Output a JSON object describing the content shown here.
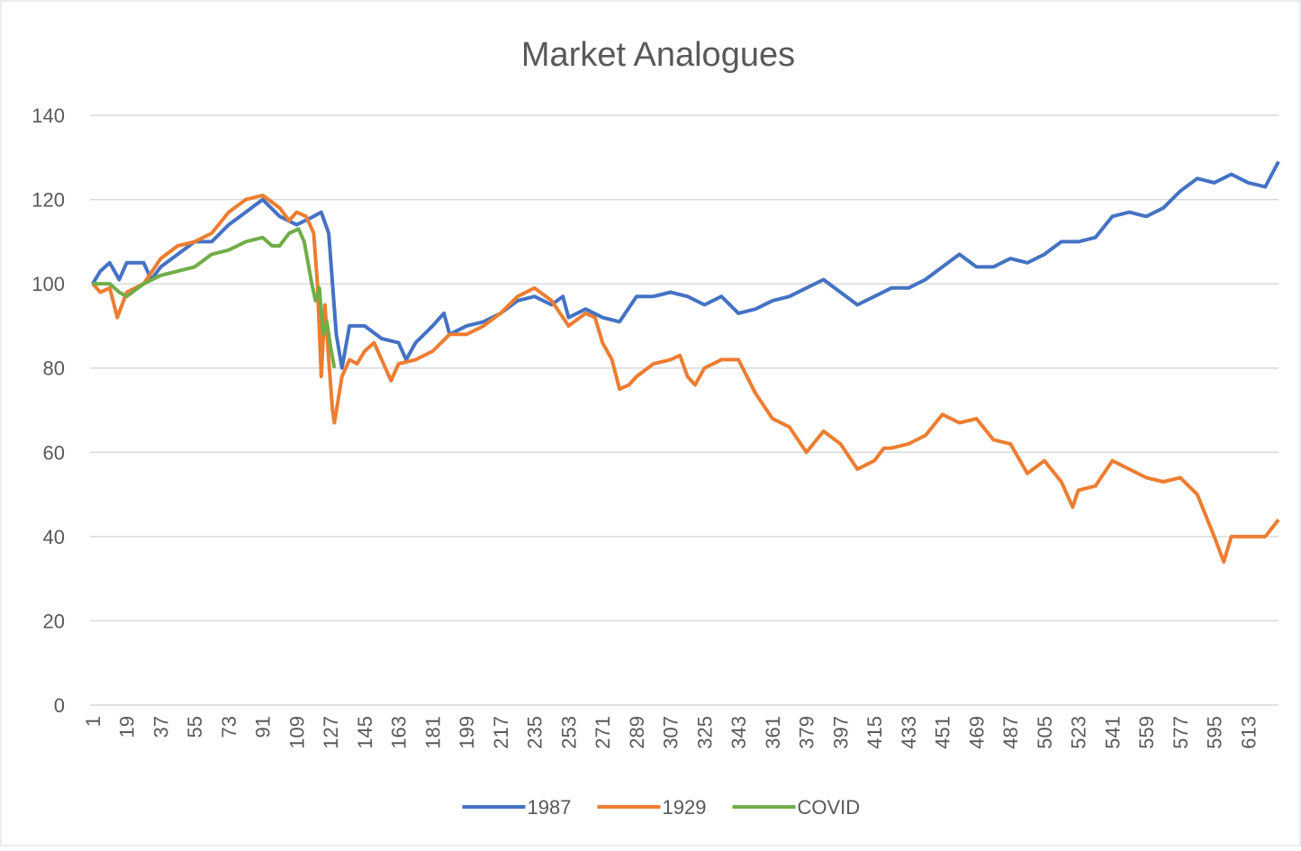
{
  "chart_data": {
    "type": "line",
    "title": "Market Analogues",
    "xlim": [
      1,
      629
    ],
    "xticks": [
      1,
      19,
      37,
      55,
      73,
      91,
      109,
      127,
      145,
      163,
      181,
      199,
      217,
      235,
      253,
      271,
      289,
      307,
      325,
      343,
      361,
      379,
      397,
      415,
      433,
      451,
      469,
      487,
      505,
      523,
      541,
      559,
      577,
      595,
      613
    ],
    "ylim": [
      0,
      140
    ],
    "yticks": [
      0,
      20,
      40,
      60,
      80,
      100,
      120,
      140
    ],
    "grid": true,
    "legend": "bottom",
    "series": [
      {
        "name": "1987",
        "color": "#4472c4",
        "x": [
          1,
          5,
          10,
          15,
          19,
          28,
          32,
          37,
          46,
          55,
          64,
          73,
          82,
          91,
          100,
          109,
          118,
          122,
          126,
          128,
          130,
          133,
          137,
          145,
          154,
          163,
          167,
          172,
          181,
          187,
          190,
          199,
          208,
          217,
          226,
          235,
          244,
          250,
          253,
          262,
          271,
          280,
          289,
          298,
          307,
          316,
          325,
          334,
          343,
          352,
          361,
          370,
          379,
          388,
          397,
          406,
          415,
          424,
          433,
          442,
          451,
          460,
          469,
          478,
          487,
          496,
          505,
          514,
          523,
          532,
          541,
          550,
          559,
          568,
          577,
          586,
          595,
          604,
          613,
          622,
          629
        ],
        "values": [
          100,
          103,
          105,
          101,
          105,
          105,
          101,
          104,
          107,
          110,
          110,
          114,
          117,
          120,
          116,
          114,
          116,
          117,
          112,
          100,
          88,
          80,
          90,
          90,
          87,
          86,
          82,
          86,
          90,
          93,
          88,
          90,
          91,
          93,
          96,
          97,
          95,
          97,
          92,
          94,
          92,
          91,
          97,
          97,
          98,
          97,
          95,
          97,
          93,
          94,
          96,
          97,
          99,
          101,
          98,
          95,
          97,
          99,
          99,
          101,
          104,
          107,
          104,
          104,
          106,
          105,
          107,
          110,
          110,
          111,
          116,
          117,
          116,
          118,
          122,
          125,
          124,
          126,
          124,
          123,
          129
        ]
      },
      {
        "name": "1929",
        "color": "#ed7d31",
        "x": [
          1,
          5,
          10,
          14,
          19,
          28,
          37,
          46,
          55,
          64,
          73,
          82,
          91,
          100,
          105,
          109,
          114,
          118,
          120,
          122,
          124,
          126,
          128,
          129,
          133,
          137,
          141,
          145,
          150,
          154,
          159,
          163,
          172,
          181,
          190,
          199,
          208,
          217,
          226,
          235,
          244,
          253,
          262,
          267,
          271,
          276,
          280,
          285,
          289,
          298,
          307,
          312,
          316,
          320,
          325,
          334,
          343,
          352,
          361,
          370,
          379,
          388,
          397,
          406,
          415,
          420,
          424,
          433,
          442,
          451,
          460,
          469,
          478,
          487,
          496,
          505,
          514,
          520,
          523,
          532,
          541,
          550,
          559,
          568,
          577,
          586,
          595,
          600,
          604,
          613,
          622,
          629
        ],
        "values": [
          100,
          98,
          99,
          92,
          98,
          100,
          106,
          109,
          110,
          112,
          117,
          120,
          121,
          118,
          115,
          117,
          116,
          112,
          100,
          78,
          95,
          82,
          70,
          67,
          78,
          82,
          81,
          84,
          86,
          82,
          77,
          81,
          82,
          84,
          88,
          88,
          90,
          93,
          97,
          99,
          96,
          90,
          93,
          92,
          86,
          82,
          75,
          76,
          78,
          81,
          82,
          83,
          78,
          76,
          80,
          82,
          82,
          74,
          68,
          66,
          60,
          65,
          62,
          56,
          58,
          61,
          61,
          62,
          64,
          69,
          67,
          68,
          63,
          62,
          55,
          58,
          53,
          47,
          51,
          52,
          58,
          56,
          54,
          53,
          54,
          50,
          40,
          34,
          40,
          40,
          40,
          44
        ]
      },
      {
        "name": "COVID",
        "color": "#70ad47",
        "x": [
          1,
          10,
          15,
          19,
          28,
          37,
          46,
          55,
          64,
          73,
          82,
          91,
          96,
          100,
          105,
          110,
          113,
          117,
          119,
          121,
          123,
          125,
          127,
          129
        ],
        "values": [
          100,
          100,
          98,
          97,
          100,
          102,
          103,
          104,
          107,
          108,
          110,
          111,
          109,
          109,
          112,
          113,
          110,
          100,
          96,
          99,
          88,
          91,
          85,
          80
        ]
      }
    ]
  }
}
